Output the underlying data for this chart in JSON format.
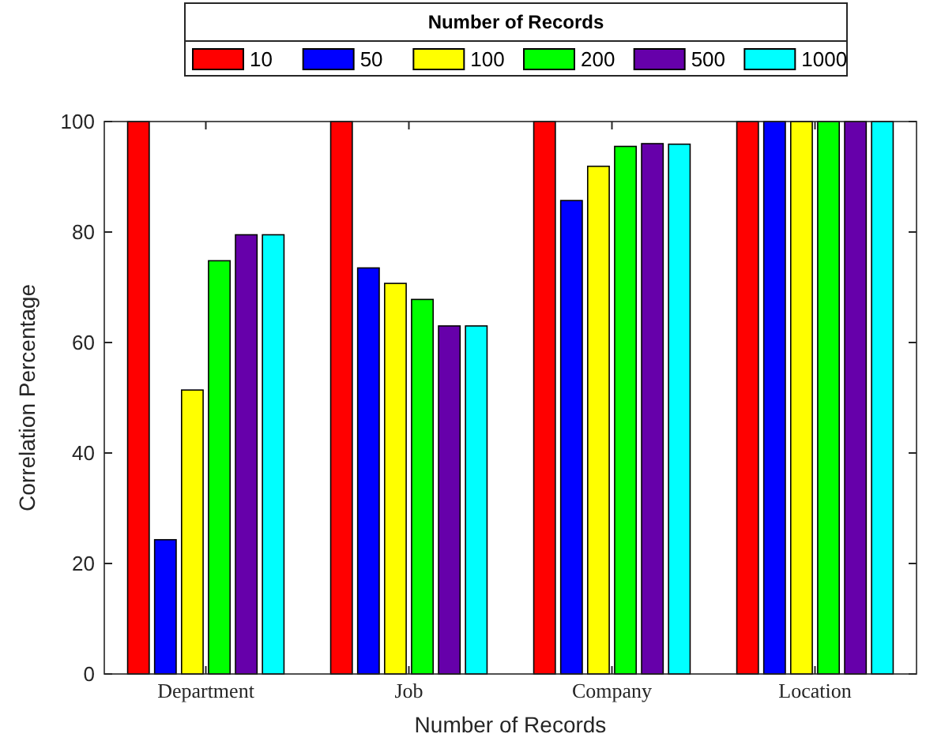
{
  "chart_data": {
    "type": "bar",
    "xlabel": "Number of Records",
    "ylabel": "Correlation Percentage",
    "legend_title": "Number of Records",
    "legend": "top",
    "grid": false,
    "categories": [
      "Department",
      "Job",
      "Company",
      "Location"
    ],
    "ylim": [
      0,
      100
    ],
    "yticks": [
      0,
      20,
      40,
      60,
      80,
      100
    ],
    "series": [
      {
        "name": "10",
        "color": "#ff0000",
        "values": [
          100,
          100,
          100,
          100
        ]
      },
      {
        "name": "50",
        "color": "#0000ff",
        "values": [
          24.3,
          73.5,
          85.7,
          100
        ]
      },
      {
        "name": "100",
        "color": "#ffff00",
        "values": [
          51.4,
          70.7,
          91.9,
          100
        ]
      },
      {
        "name": "200",
        "color": "#00ff00",
        "values": [
          74.8,
          67.8,
          95.5,
          100
        ]
      },
      {
        "name": "500",
        "color": "#6600aa",
        "values": [
          79.5,
          63.0,
          96.0,
          100
        ]
      },
      {
        "name": "1000",
        "color": "#00ffff",
        "values": [
          79.5,
          63.0,
          95.9,
          100
        ]
      }
    ]
  }
}
